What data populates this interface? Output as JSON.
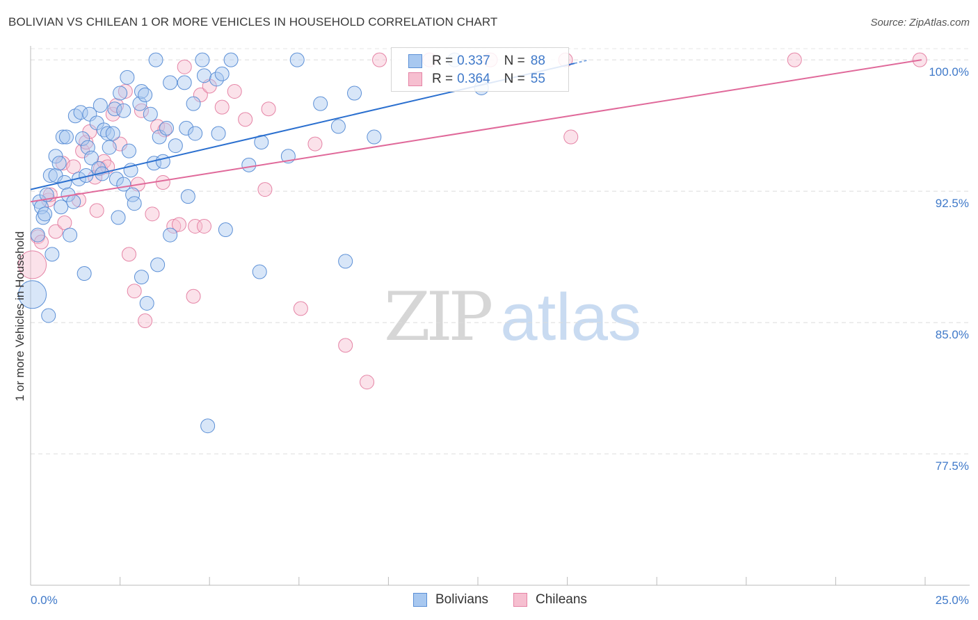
{
  "title": "BOLIVIAN VS CHILEAN 1 OR MORE VEHICLES IN HOUSEHOLD CORRELATION CHART",
  "source": "Source: ZipAtlas.com",
  "watermark": {
    "zip": "ZIP",
    "atlas": "atlas"
  },
  "legend": {
    "rows": [
      {
        "r_label": "R =",
        "r_value": "0.337",
        "n_label": "N =",
        "n_value": "88",
        "color": "#a8c8f0",
        "border": "#5b8fd6"
      },
      {
        "r_label": "R =",
        "r_value": "0.364",
        "n_label": "N =",
        "n_value": "55",
        "color": "#f6bfd0",
        "border": "#e583a5"
      }
    ]
  },
  "bottom_legend": [
    {
      "label": "Bolivians",
      "color": "#a8c8f0",
      "border": "#5b8fd6"
    },
    {
      "label": "Chileans",
      "color": "#f6bfd0",
      "border": "#e583a5"
    }
  ],
  "chart_data": {
    "type": "scatter",
    "title": "BOLIVIAN VS CHILEAN 1 OR MORE VEHICLES IN HOUSEHOLD CORRELATION CHART",
    "xlabel": "",
    "ylabel": "1 or more Vehicles in Household",
    "xlim": [
      0,
      25
    ],
    "ylim": [
      70,
      100.8
    ],
    "x_tick_labels": [
      "0.0%",
      "25.0%"
    ],
    "y_ticks": [
      77.5,
      85.0,
      92.5,
      100.0
    ],
    "y_tick_labels": [
      "77.5%",
      "85.0%",
      "92.5%",
      "100.0%"
    ],
    "grid": true,
    "colors": {
      "bolivians": "#5b8fd6",
      "chileans": "#e583a5",
      "bolivians_line": "#2a6fcf",
      "chileans_line": "#e0699a"
    },
    "series": [
      {
        "name": "Bolivians",
        "trend": {
          "x1": 0.0,
          "y1": 92.6,
          "x2": 15.2,
          "y2": 99.8,
          "dashed_to_x": 15.6,
          "dashed_to_y": 100.0
        },
        "points": [
          [
            0.05,
            86.6,
            20
          ],
          [
            0.2,
            90.0,
            10
          ],
          [
            0.25,
            91.9,
            10
          ],
          [
            0.3,
            91.6,
            10
          ],
          [
            0.35,
            91.0,
            10
          ],
          [
            0.4,
            91.2,
            10
          ],
          [
            0.45,
            92.3,
            10
          ],
          [
            0.5,
            85.4,
            10
          ],
          [
            0.55,
            93.4,
            10
          ],
          [
            0.6,
            88.9,
            10
          ],
          [
            0.7,
            93.4,
            10
          ],
          [
            0.7,
            94.5,
            10
          ],
          [
            0.8,
            94.1,
            10
          ],
          [
            0.85,
            91.6,
            10
          ],
          [
            0.9,
            95.6,
            10
          ],
          [
            0.95,
            93.0,
            10
          ],
          [
            1.0,
            95.6,
            10
          ],
          [
            1.05,
            92.3,
            10
          ],
          [
            1.1,
            90.0,
            10
          ],
          [
            1.2,
            91.9,
            10
          ],
          [
            1.25,
            96.8,
            10
          ],
          [
            1.35,
            93.2,
            10
          ],
          [
            1.4,
            97.0,
            10
          ],
          [
            1.45,
            95.5,
            10
          ],
          [
            1.5,
            87.8,
            10
          ],
          [
            1.55,
            93.4,
            10
          ],
          [
            1.6,
            95.0,
            10
          ],
          [
            1.65,
            96.9,
            10
          ],
          [
            1.7,
            94.4,
            10
          ],
          [
            1.85,
            96.4,
            10
          ],
          [
            1.9,
            93.8,
            10
          ],
          [
            1.95,
            97.4,
            10
          ],
          [
            2.0,
            93.5,
            10
          ],
          [
            2.05,
            96.0,
            10
          ],
          [
            2.15,
            95.8,
            10
          ],
          [
            2.2,
            95.0,
            10
          ],
          [
            2.3,
            95.8,
            10
          ],
          [
            2.35,
            97.2,
            10
          ],
          [
            2.4,
            93.2,
            10
          ],
          [
            2.45,
            91.0,
            10
          ],
          [
            2.5,
            98.1,
            10
          ],
          [
            2.6,
            92.9,
            10
          ],
          [
            2.6,
            97.1,
            10
          ],
          [
            2.7,
            99.0,
            10
          ],
          [
            2.75,
            94.8,
            10
          ],
          [
            2.8,
            93.7,
            10
          ],
          [
            2.85,
            92.3,
            10
          ],
          [
            2.9,
            91.8,
            10
          ],
          [
            3.05,
            97.5,
            10
          ],
          [
            3.1,
            98.2,
            10
          ],
          [
            3.1,
            87.6,
            10
          ],
          [
            3.2,
            98.0,
            10
          ],
          [
            3.25,
            86.1,
            10
          ],
          [
            3.35,
            96.9,
            10
          ],
          [
            3.45,
            94.1,
            10
          ],
          [
            3.5,
            100.0,
            10
          ],
          [
            3.55,
            88.3,
            10
          ],
          [
            3.6,
            95.6,
            10
          ],
          [
            3.7,
            94.2,
            10
          ],
          [
            3.8,
            96.1,
            10
          ],
          [
            3.9,
            98.7,
            10
          ],
          [
            3.9,
            90.0,
            10
          ],
          [
            4.05,
            95.1,
            10
          ],
          [
            4.3,
            98.7,
            10
          ],
          [
            4.35,
            96.1,
            10
          ],
          [
            4.4,
            92.2,
            10
          ],
          [
            4.55,
            97.5,
            10
          ],
          [
            4.6,
            95.8,
            10
          ],
          [
            4.8,
            100.0,
            10
          ],
          [
            4.85,
            99.1,
            10
          ],
          [
            4.95,
            79.1,
            10
          ],
          [
            5.2,
            98.9,
            10
          ],
          [
            5.25,
            95.8,
            10
          ],
          [
            5.35,
            99.2,
            10
          ],
          [
            5.45,
            90.3,
            10
          ],
          [
            5.6,
            100.0,
            10
          ],
          [
            6.1,
            94.0,
            10
          ],
          [
            6.4,
            87.9,
            10
          ],
          [
            6.45,
            95.3,
            10
          ],
          [
            7.2,
            94.5,
            10
          ],
          [
            7.45,
            100.0,
            10
          ],
          [
            8.1,
            97.5,
            10
          ],
          [
            8.6,
            96.2,
            10
          ],
          [
            8.8,
            88.5,
            10
          ],
          [
            9.05,
            98.1,
            10
          ],
          [
            9.6,
            95.6,
            10
          ],
          [
            11.85,
            100.0,
            10
          ],
          [
            12.6,
            98.4,
            10
          ]
        ]
      },
      {
        "name": "Chileans",
        "trend": {
          "x1": 0.0,
          "y1": 91.9,
          "x2": 24.9,
          "y2": 100.0
        },
        "points": [
          [
            0.05,
            88.3,
            20
          ],
          [
            0.2,
            89.9,
            10
          ],
          [
            0.3,
            89.6,
            10
          ],
          [
            0.5,
            92.0,
            10
          ],
          [
            0.55,
            92.3,
            10
          ],
          [
            0.7,
            90.2,
            10
          ],
          [
            0.9,
            94.1,
            10
          ],
          [
            0.95,
            90.7,
            10
          ],
          [
            1.2,
            93.9,
            10
          ],
          [
            1.35,
            92.0,
            10
          ],
          [
            1.45,
            94.8,
            10
          ],
          [
            1.55,
            95.3,
            10
          ],
          [
            1.65,
            95.9,
            10
          ],
          [
            1.8,
            93.3,
            10
          ],
          [
            1.85,
            91.4,
            10
          ],
          [
            1.95,
            93.8,
            10
          ],
          [
            2.05,
            94.2,
            10
          ],
          [
            2.15,
            93.9,
            10
          ],
          [
            2.3,
            96.9,
            10
          ],
          [
            2.4,
            97.4,
            10
          ],
          [
            2.5,
            95.2,
            10
          ],
          [
            2.65,
            98.2,
            10
          ],
          [
            2.75,
            88.9,
            10
          ],
          [
            2.9,
            86.8,
            10
          ],
          [
            3.0,
            92.9,
            10
          ],
          [
            3.1,
            97.1,
            10
          ],
          [
            3.2,
            85.1,
            10
          ],
          [
            3.4,
            91.2,
            10
          ],
          [
            3.55,
            96.2,
            10
          ],
          [
            3.7,
            93.0,
            10
          ],
          [
            3.75,
            96.0,
            10
          ],
          [
            4.0,
            90.5,
            10
          ],
          [
            4.15,
            90.6,
            10
          ],
          [
            4.3,
            99.6,
            10
          ],
          [
            4.55,
            86.5,
            10
          ],
          [
            4.6,
            90.5,
            10
          ],
          [
            4.75,
            98.0,
            10
          ],
          [
            4.85,
            90.5,
            10
          ],
          [
            5.0,
            98.5,
            10
          ],
          [
            5.35,
            97.3,
            10
          ],
          [
            5.7,
            98.2,
            10
          ],
          [
            6.0,
            96.6,
            10
          ],
          [
            6.55,
            92.6,
            10
          ],
          [
            6.65,
            97.2,
            10
          ],
          [
            7.55,
            85.8,
            10
          ],
          [
            7.95,
            95.2,
            10
          ],
          [
            8.8,
            83.7,
            10
          ],
          [
            9.4,
            81.6,
            10
          ],
          [
            9.75,
            100.0,
            10
          ],
          [
            11.15,
            100.0,
            10
          ],
          [
            12.85,
            100.0,
            10
          ],
          [
            14.95,
            100.0,
            10
          ],
          [
            15.1,
            95.6,
            10
          ],
          [
            21.35,
            100.0,
            10
          ],
          [
            24.85,
            100.0,
            10
          ]
        ]
      }
    ]
  }
}
